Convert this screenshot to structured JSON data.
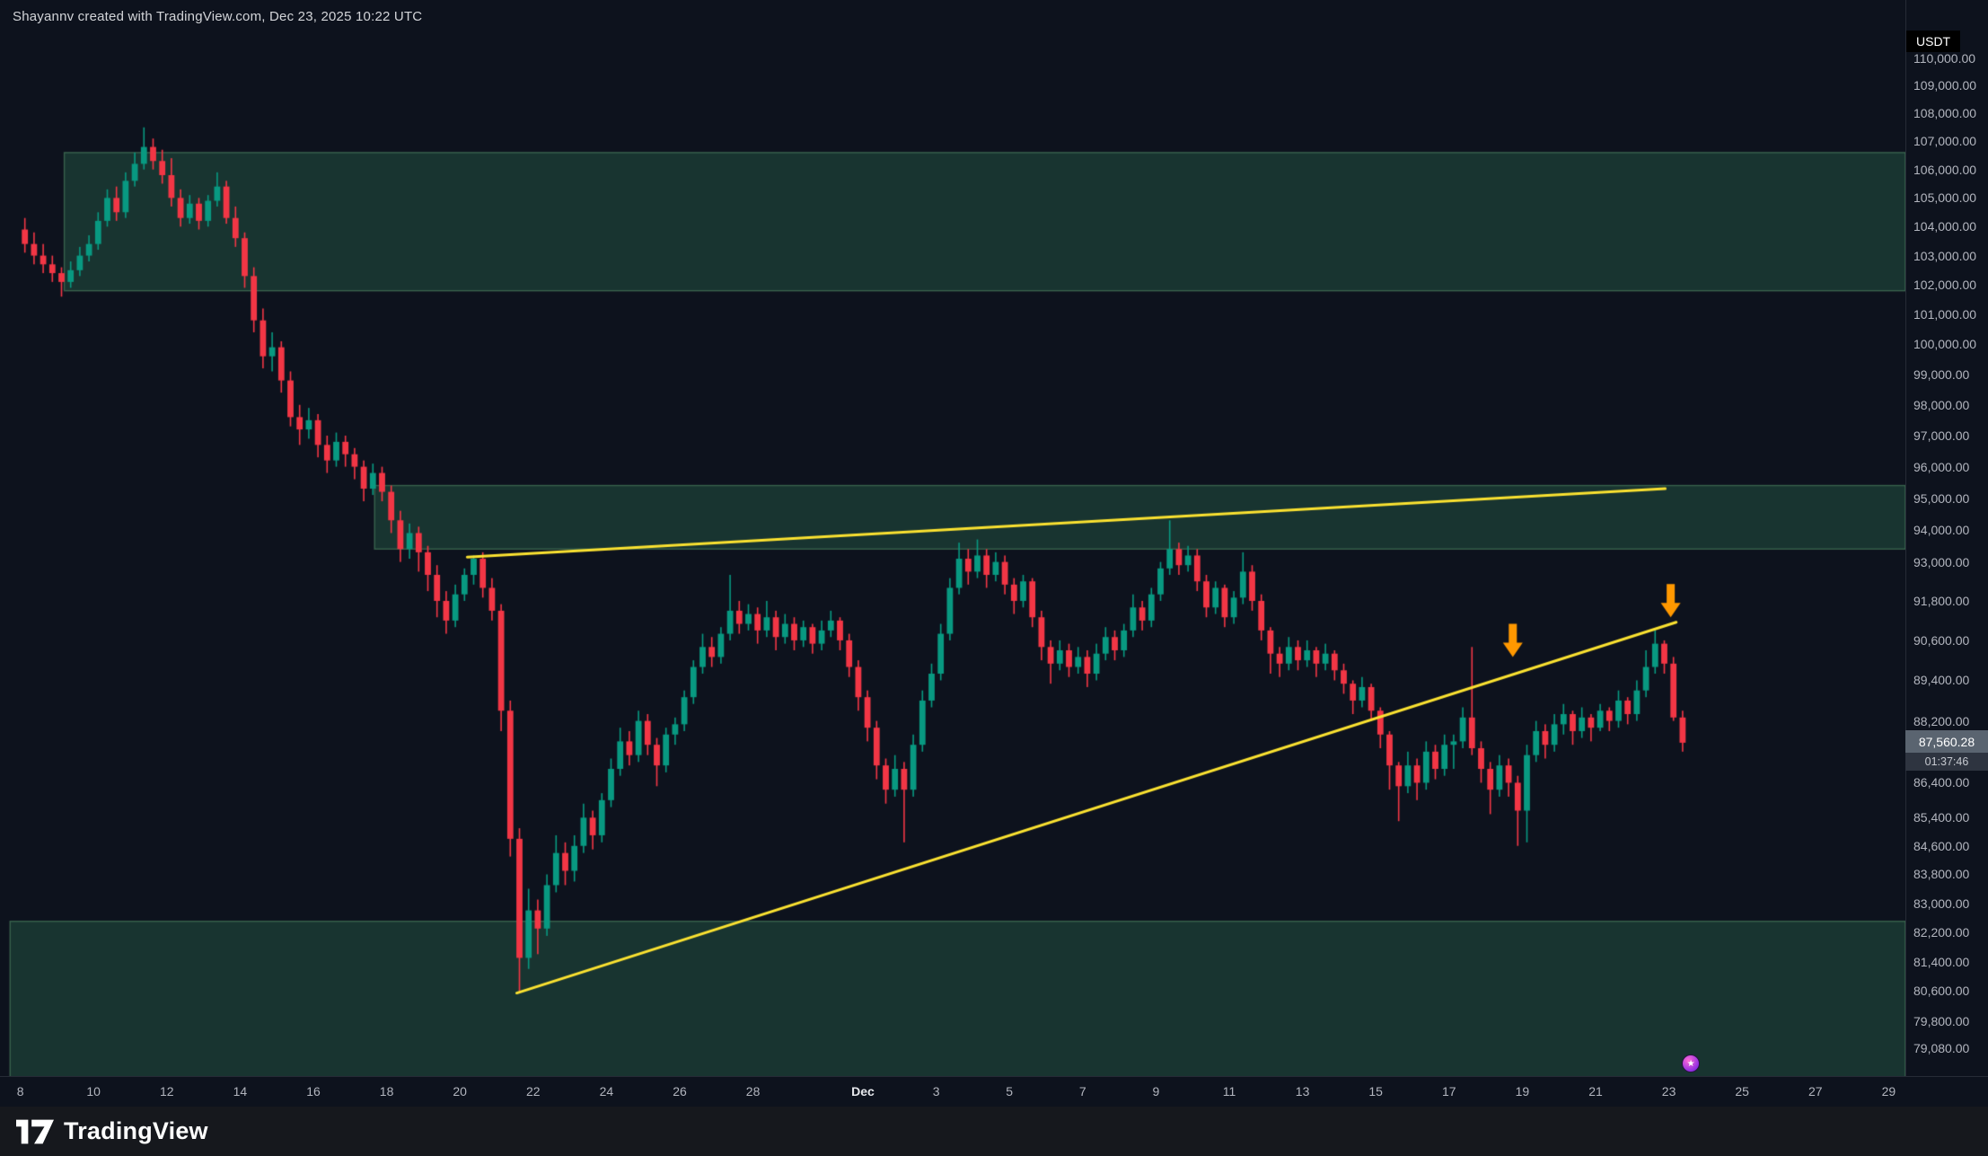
{
  "attribution": "Shayannv created with TradingView.com, Dec 23, 2025 10:22 UTC",
  "axis_currency": "USDT",
  "price_tag": {
    "price": "87,560.28",
    "countdown": "01:37:46"
  },
  "logo_text": "TradingView",
  "chart_data": {
    "type": "candlestick",
    "scale": "log",
    "quote_currency": "USDT",
    "start_date": "Nov 8",
    "candle_step_days": 0.25,
    "last_price": 87560.28,
    "price_range_visible": [
      78340,
      112170
    ],
    "colors": {
      "up": "#089981",
      "down": "#f23645",
      "trendline": "#fbe231",
      "arrow": "#ff9800",
      "zone_fill": "rgba(47,118,86,0.35)",
      "zone_border": "rgba(104,172,122,0.45)",
      "background": "#0d121d"
    },
    "zones": [
      {
        "name": "resistance-zone-upper",
        "price_top": 106600,
        "price_bottom": 101800,
        "day_start": 1.2,
        "day_end": 51.5
      },
      {
        "name": "resistance-zone-mid",
        "price_top": 95400,
        "price_bottom": 93400,
        "day_start": 9.67,
        "day_end": 51.5
      },
      {
        "name": "support-zone-lower",
        "price_top": 82500,
        "price_bottom": 78300,
        "day_start": -0.28,
        "day_end": 51.5
      }
    ],
    "trendlines": [
      {
        "name": "upper-ascending-trendline",
        "day1": 12.2,
        "price1": 93150,
        "day2": 44.9,
        "price2": 95300
      },
      {
        "name": "lower-ascending-trendline",
        "day1": 13.55,
        "price1": 80550,
        "day2": 45.2,
        "price2": 91150
      }
    ],
    "arrows": [
      {
        "name": "rejection-arrow-1",
        "day": 40.74,
        "price": 90100
      },
      {
        "name": "rejection-arrow-2",
        "day": 45.05,
        "price": 91300
      }
    ],
    "event_marker": {
      "day": 45.6
    },
    "price_ticks": [
      {
        "value": 110000,
        "text": "110,000.00"
      },
      {
        "value": 109000,
        "text": "109,000.00"
      },
      {
        "value": 108000,
        "text": "108,000.00"
      },
      {
        "value": 107000,
        "text": "107,000.00"
      },
      {
        "value": 106000,
        "text": "106,000.00"
      },
      {
        "value": 105000,
        "text": "105,000.00"
      },
      {
        "value": 104000,
        "text": "104,000.00"
      },
      {
        "value": 103000,
        "text": "103,000.00"
      },
      {
        "value": 102000,
        "text": "102,000.00"
      },
      {
        "value": 101000,
        "text": "101,000.00"
      },
      {
        "value": 100000,
        "text": "100,000.00"
      },
      {
        "value": 99000,
        "text": "99,000.00"
      },
      {
        "value": 98000,
        "text": "98,000.00"
      },
      {
        "value": 97000,
        "text": "97,000.00"
      },
      {
        "value": 96000,
        "text": "96,000.00"
      },
      {
        "value": 95000,
        "text": "95,000.00"
      },
      {
        "value": 94000,
        "text": "94,000.00"
      },
      {
        "value": 93000,
        "text": "93,000.00"
      },
      {
        "value": 91800,
        "text": "91,800.00"
      },
      {
        "value": 90600,
        "text": "90,600.00"
      },
      {
        "value": 89400,
        "text": "89,400.00"
      },
      {
        "value": 88200,
        "text": "88,200.00"
      },
      {
        "value": 86400,
        "text": "86,400.00"
      },
      {
        "value": 85400,
        "text": "85,400.00"
      },
      {
        "value": 84600,
        "text": "84,600.00"
      },
      {
        "value": 83800,
        "text": "83,800.00"
      },
      {
        "value": 83000,
        "text": "83,000.00"
      },
      {
        "value": 82200,
        "text": "82,200.00"
      },
      {
        "value": 81400,
        "text": "81,400.00"
      },
      {
        "value": 80600,
        "text": "80,600.00"
      },
      {
        "value": 79800,
        "text": "79,800.00"
      },
      {
        "value": 79080,
        "text": "79,080.00"
      }
    ],
    "time_ticks": [
      {
        "label": "8",
        "day": 0
      },
      {
        "label": "10",
        "day": 2
      },
      {
        "label": "12",
        "day": 4
      },
      {
        "label": "14",
        "day": 6
      },
      {
        "label": "16",
        "day": 8
      },
      {
        "label": "18",
        "day": 10
      },
      {
        "label": "20",
        "day": 12
      },
      {
        "label": "22",
        "day": 14
      },
      {
        "label": "24",
        "day": 16
      },
      {
        "label": "26",
        "day": 18
      },
      {
        "label": "28",
        "day": 20
      },
      {
        "label": "Dec",
        "day": 23,
        "emphasis": true
      },
      {
        "label": "3",
        "day": 25
      },
      {
        "label": "5",
        "day": 27
      },
      {
        "label": "7",
        "day": 29
      },
      {
        "label": "9",
        "day": 31
      },
      {
        "label": "11",
        "day": 33
      },
      {
        "label": "13",
        "day": 35
      },
      {
        "label": "15",
        "day": 37
      },
      {
        "label": "17",
        "day": 39
      },
      {
        "label": "19",
        "day": 41
      },
      {
        "label": "21",
        "day": 43
      },
      {
        "label": "23",
        "day": 45
      },
      {
        "label": "25",
        "day": 47
      },
      {
        "label": "27",
        "day": 49
      },
      {
        "label": "29",
        "day": 51
      }
    ],
    "candles": [
      [
        103900,
        104300,
        103100,
        103400
      ],
      [
        103400,
        103800,
        102700,
        103000
      ],
      [
        103000,
        103400,
        102400,
        102700
      ],
      [
        102700,
        103000,
        102100,
        102400
      ],
      [
        102400,
        102600,
        101600,
        102100
      ],
      [
        102100,
        102800,
        101900,
        102500
      ],
      [
        102500,
        103300,
        102300,
        103000
      ],
      [
        103000,
        103700,
        102800,
        103400
      ],
      [
        103400,
        104500,
        103200,
        104200
      ],
      [
        104200,
        105300,
        104000,
        105000
      ],
      [
        105000,
        105400,
        104200,
        104500
      ],
      [
        104500,
        105900,
        104300,
        105600
      ],
      [
        105600,
        106600,
        105400,
        106200
      ],
      [
        106200,
        107500,
        106000,
        106800
      ],
      [
        106800,
        107100,
        106000,
        106300
      ],
      [
        106300,
        106700,
        105500,
        105800
      ],
      [
        105800,
        106400,
        104700,
        105000
      ],
      [
        105000,
        105300,
        104000,
        104300
      ],
      [
        104300,
        105100,
        104100,
        104800
      ],
      [
        104800,
        105000,
        103900,
        104200
      ],
      [
        104200,
        105100,
        104000,
        104900
      ],
      [
        104900,
        105900,
        104700,
        105400
      ],
      [
        105400,
        105600,
        104100,
        104300
      ],
      [
        104300,
        104700,
        103300,
        103600
      ],
      [
        103600,
        103800,
        101900,
        102300
      ],
      [
        102300,
        102600,
        100400,
        100800
      ],
      [
        100800,
        101200,
        99200,
        99600
      ],
      [
        99600,
        100400,
        99100,
        99900
      ],
      [
        99900,
        100100,
        98400,
        98800
      ],
      [
        98800,
        99100,
        97300,
        97600
      ],
      [
        97600,
        98000,
        96700,
        97200
      ],
      [
        97200,
        97900,
        96900,
        97500
      ],
      [
        97500,
        97700,
        96300,
        96700
      ],
      [
        96700,
        97000,
        95800,
        96200
      ],
      [
        96200,
        97100,
        96000,
        96800
      ],
      [
        96800,
        97000,
        96000,
        96400
      ],
      [
        96400,
        96600,
        95600,
        96000
      ],
      [
        96000,
        96200,
        94900,
        95300
      ],
      [
        95300,
        96100,
        95100,
        95800
      ],
      [
        95800,
        96000,
        94900,
        95200
      ],
      [
        95200,
        95400,
        93900,
        94300
      ],
      [
        94300,
        94600,
        93000,
        93400
      ],
      [
        93400,
        94200,
        93100,
        93900
      ],
      [
        93900,
        94100,
        92700,
        93300
      ],
      [
        93300,
        93500,
        92100,
        92600
      ],
      [
        92600,
        92900,
        91300,
        91800
      ],
      [
        91800,
        92100,
        90800,
        91200
      ],
      [
        91200,
        92300,
        91000,
        92000
      ],
      [
        92000,
        92800,
        91800,
        92600
      ],
      [
        92600,
        93200,
        92300,
        93100
      ],
      [
        93100,
        93300,
        91900,
        92200
      ],
      [
        92200,
        92500,
        91200,
        91500
      ],
      [
        91500,
        91700,
        87900,
        88500
      ],
      [
        88500,
        88800,
        84300,
        84800
      ],
      [
        84800,
        85100,
        80600,
        81500
      ],
      [
        81500,
        83400,
        81200,
        82800
      ],
      [
        82800,
        83100,
        81600,
        82300
      ],
      [
        82300,
        83800,
        82100,
        83500
      ],
      [
        83500,
        84900,
        83300,
        84400
      ],
      [
        84400,
        84700,
        83500,
        83900
      ],
      [
        83900,
        84900,
        83600,
        84600
      ],
      [
        84600,
        85800,
        84400,
        85400
      ],
      [
        85400,
        85600,
        84500,
        84900
      ],
      [
        84900,
        86100,
        84700,
        85900
      ],
      [
        85900,
        87100,
        85700,
        86800
      ],
      [
        86800,
        88000,
        86600,
        87600
      ],
      [
        87600,
        87900,
        86900,
        87200
      ],
      [
        87200,
        88500,
        87000,
        88200
      ],
      [
        88200,
        88400,
        87200,
        87500
      ],
      [
        87500,
        87700,
        86300,
        86900
      ],
      [
        86900,
        88000,
        86700,
        87800
      ],
      [
        87800,
        88300,
        87500,
        88100
      ],
      [
        88100,
        89100,
        87900,
        88900
      ],
      [
        88900,
        90000,
        88700,
        89800
      ],
      [
        89800,
        90800,
        89600,
        90400
      ],
      [
        90400,
        90700,
        89800,
        90100
      ],
      [
        90100,
        91000,
        89900,
        90800
      ],
      [
        90800,
        92600,
        90600,
        91500
      ],
      [
        91500,
        91800,
        90800,
        91100
      ],
      [
        91100,
        91700,
        90900,
        91400
      ],
      [
        91400,
        91600,
        90500,
        90900
      ],
      [
        90900,
        91800,
        90700,
        91300
      ],
      [
        91300,
        91500,
        90300,
        90700
      ],
      [
        90700,
        91400,
        90500,
        91100
      ],
      [
        91100,
        91300,
        90300,
        90600
      ],
      [
        90600,
        91200,
        90400,
        91000
      ],
      [
        91000,
        91100,
        90200,
        90500
      ],
      [
        90500,
        91200,
        90300,
        90900
      ],
      [
        90900,
        91500,
        90700,
        91200
      ],
      [
        91200,
        91300,
        90300,
        90600
      ],
      [
        90600,
        90800,
        89500,
        89800
      ],
      [
        89800,
        90000,
        88500,
        88900
      ],
      [
        88900,
        89100,
        87600,
        88000
      ],
      [
        88000,
        88200,
        86500,
        86900
      ],
      [
        86900,
        87100,
        85800,
        86200
      ],
      [
        86200,
        87200,
        86000,
        86800
      ],
      [
        86800,
        87000,
        84700,
        86200
      ],
      [
        86200,
        87800,
        86000,
        87500
      ],
      [
        87500,
        89100,
        87300,
        88800
      ],
      [
        88800,
        89900,
        88600,
        89600
      ],
      [
        89600,
        91100,
        89400,
        90800
      ],
      [
        90800,
        92500,
        90600,
        92200
      ],
      [
        92200,
        93600,
        92000,
        93100
      ],
      [
        93100,
        93400,
        92300,
        92700
      ],
      [
        92700,
        93700,
        92500,
        93200
      ],
      [
        93200,
        93400,
        92200,
        92600
      ],
      [
        92600,
        93300,
        92400,
        93000
      ],
      [
        93000,
        93200,
        92000,
        92300
      ],
      [
        92300,
        92500,
        91400,
        91800
      ],
      [
        91800,
        92600,
        91600,
        92400
      ],
      [
        92400,
        92500,
        91000,
        91300
      ],
      [
        91300,
        91500,
        90000,
        90400
      ],
      [
        90400,
        90600,
        89300,
        89900
      ],
      [
        89900,
        90600,
        89700,
        90300
      ],
      [
        90300,
        90500,
        89500,
        89800
      ],
      [
        89800,
        90400,
        89600,
        90100
      ],
      [
        90100,
        90300,
        89200,
        89600
      ],
      [
        89600,
        90500,
        89400,
        90200
      ],
      [
        90200,
        91000,
        90000,
        90700
      ],
      [
        90700,
        90900,
        90000,
        90300
      ],
      [
        90300,
        91100,
        90100,
        90900
      ],
      [
        90900,
        92000,
        90700,
        91600
      ],
      [
        91600,
        91800,
        90900,
        91200
      ],
      [
        91200,
        92200,
        91000,
        92000
      ],
      [
        92000,
        93000,
        91800,
        92800
      ],
      [
        92800,
        94300,
        92600,
        93400
      ],
      [
        93400,
        93600,
        92600,
        92900
      ],
      [
        92900,
        93500,
        92700,
        93200
      ],
      [
        93200,
        93400,
        92100,
        92400
      ],
      [
        92400,
        92600,
        91300,
        91600
      ],
      [
        91600,
        92400,
        91400,
        92200
      ],
      [
        92200,
        92300,
        91000,
        91300
      ],
      [
        91300,
        92100,
        91100,
        91900
      ],
      [
        91900,
        93300,
        91700,
        92700
      ],
      [
        92700,
        92900,
        91500,
        91800
      ],
      [
        91800,
        92000,
        90600,
        90900
      ],
      [
        90900,
        91000,
        89600,
        90200
      ],
      [
        90200,
        90400,
        89500,
        89900
      ],
      [
        89900,
        90700,
        89700,
        90400
      ],
      [
        90400,
        90600,
        89700,
        90000
      ],
      [
        90000,
        90600,
        89800,
        90300
      ],
      [
        90300,
        90400,
        89500,
        89900
      ],
      [
        89900,
        90500,
        89700,
        90200
      ],
      [
        90200,
        90300,
        89400,
        89700
      ],
      [
        89700,
        89900,
        89000,
        89300
      ],
      [
        89300,
        89400,
        88400,
        88800
      ],
      [
        88800,
        89500,
        88600,
        89200
      ],
      [
        89200,
        89300,
        88200,
        88500
      ],
      [
        88500,
        88600,
        87400,
        87800
      ],
      [
        87800,
        87900,
        86200,
        86900
      ],
      [
        86900,
        87000,
        85300,
        86300
      ],
      [
        86300,
        87300,
        86100,
        86900
      ],
      [
        86900,
        87100,
        85900,
        86400
      ],
      [
        86400,
        87600,
        86200,
        87300
      ],
      [
        87300,
        87500,
        86500,
        86800
      ],
      [
        86800,
        87800,
        86600,
        87500
      ],
      [
        87500,
        87800,
        86800,
        87600
      ],
      [
        87600,
        88600,
        87400,
        88300
      ],
      [
        88300,
        90400,
        87200,
        87400
      ],
      [
        87400,
        87600,
        86400,
        86800
      ],
      [
        86800,
        87000,
        85500,
        86200
      ],
      [
        86200,
        87200,
        86000,
        86900
      ],
      [
        86900,
        87100,
        86000,
        86400
      ],
      [
        86400,
        86600,
        84600,
        85600
      ],
      [
        85600,
        87500,
        84700,
        87200
      ],
      [
        87200,
        88200,
        87000,
        87900
      ],
      [
        87900,
        88100,
        87100,
        87500
      ],
      [
        87500,
        88400,
        87300,
        88100
      ],
      [
        88100,
        88700,
        87800,
        88400
      ],
      [
        88400,
        88500,
        87500,
        87900
      ],
      [
        87900,
        88600,
        87700,
        88300
      ],
      [
        88300,
        88400,
        87600,
        88000
      ],
      [
        88000,
        88700,
        87900,
        88500
      ],
      [
        88500,
        88600,
        87900,
        88200
      ],
      [
        88200,
        89100,
        88000,
        88800
      ],
      [
        88800,
        88900,
        88100,
        88400
      ],
      [
        88400,
        89400,
        88200,
        89100
      ],
      [
        89100,
        90300,
        88900,
        89800
      ],
      [
        89800,
        90900,
        89600,
        90500
      ],
      [
        90500,
        90600,
        89600,
        89900
      ],
      [
        89900,
        90100,
        88200,
        88300
      ],
      [
        88300,
        88500,
        87300,
        87560.28
      ]
    ]
  }
}
